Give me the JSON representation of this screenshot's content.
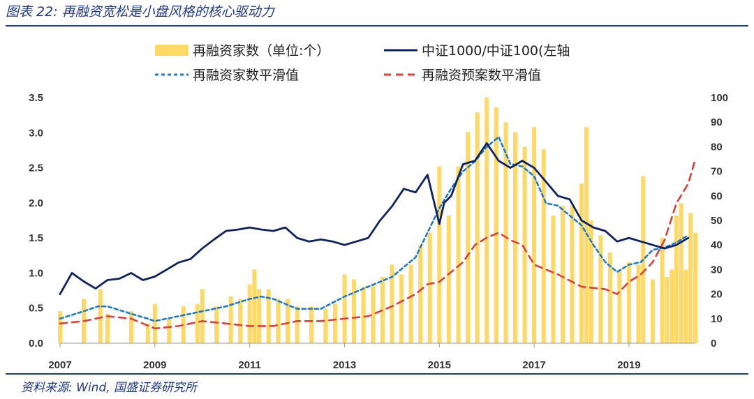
{
  "header": {
    "title": "图表 22:  再融资宽松是小盘风格的核心驱动力"
  },
  "footer": {
    "source": "资料来源:  Wind, 国盛证券研究所"
  },
  "colors": {
    "bars": "#FFD966",
    "index_line": "#0E2260",
    "smooth_line": "#1E7BC4",
    "proposal_line": "#D9413A",
    "frame": "#1F3B84"
  },
  "chart_data": {
    "type": "bar+line",
    "x_axis": {
      "labels": [
        "2007",
        "2009",
        "2011",
        "2013",
        "2015",
        "2017",
        "2019"
      ],
      "range": [
        "2007-01",
        "2020-04"
      ]
    },
    "y_left": {
      "ticks": [
        "0.0",
        "0.5",
        "1.0",
        "1.5",
        "2.0",
        "2.5",
        "3.0",
        "3.5"
      ],
      "range": [
        0,
        3.5
      ]
    },
    "y_right": {
      "ticks": [
        "0",
        "10",
        "20",
        "30",
        "40",
        "50",
        "60",
        "70",
        "80",
        "90",
        "100"
      ],
      "range": [
        0,
        100
      ]
    },
    "legend": [
      {
        "key": "bars",
        "label": "再融资家数（单位:个）",
        "style": "bar"
      },
      {
        "key": "index",
        "label": "中证1000/中证100(左轴",
        "style": "solid"
      },
      {
        "key": "smooth",
        "label": "再融资家数平滑值",
        "style": "dotted"
      },
      {
        "key": "proposal",
        "label": "再融资预案数平滑值",
        "style": "dashed"
      }
    ],
    "series": {
      "bars": {
        "axis": "right",
        "points": [
          [
            "2007.0",
            13
          ],
          [
            "2007.5",
            18
          ],
          [
            "2007.85",
            22
          ],
          [
            "2008.0",
            12
          ],
          [
            "2008.5",
            13
          ],
          [
            "2008.85",
            8
          ],
          [
            "2009.0",
            16
          ],
          [
            "2009.3",
            10
          ],
          [
            "2009.6",
            15
          ],
          [
            "2009.9",
            16
          ],
          [
            "2010.0",
            22
          ],
          [
            "2010.3",
            15
          ],
          [
            "2010.6",
            19
          ],
          [
            "2010.8",
            18
          ],
          [
            "2011.0",
            24
          ],
          [
            "2011.1",
            30
          ],
          [
            "2011.2",
            22
          ],
          [
            "2011.4",
            22
          ],
          [
            "2011.6",
            18
          ],
          [
            "2011.8",
            18
          ],
          [
            "2012.0",
            15
          ],
          [
            "2012.3",
            15
          ],
          [
            "2012.6",
            14
          ],
          [
            "2012.8",
            16
          ],
          [
            "2013.0",
            28
          ],
          [
            "2013.2",
            26
          ],
          [
            "2013.4",
            23
          ],
          [
            "2013.6",
            24
          ],
          [
            "2013.8",
            27
          ],
          [
            "2014.0",
            32
          ],
          [
            "2014.2",
            28
          ],
          [
            "2014.4",
            32
          ],
          [
            "2014.6",
            40
          ],
          [
            "2014.8",
            45
          ],
          [
            "2015.0",
            72
          ],
          [
            "2015.2",
            52
          ],
          [
            "2015.4",
            72
          ],
          [
            "2015.6",
            86
          ],
          [
            "2015.8",
            94
          ],
          [
            "2016.0",
            100
          ],
          [
            "2016.2",
            96
          ],
          [
            "2016.4",
            90
          ],
          [
            "2016.6",
            86
          ],
          [
            "2016.8",
            80
          ],
          [
            "2017.0",
            88
          ],
          [
            "2017.2",
            79
          ],
          [
            "2017.4",
            52
          ],
          [
            "2017.6",
            56
          ],
          [
            "2017.8",
            56
          ],
          [
            "2018.0",
            65
          ],
          [
            "2018.1",
            88
          ],
          [
            "2018.2",
            50
          ],
          [
            "2018.4",
            44
          ],
          [
            "2018.6",
            37
          ],
          [
            "2018.8",
            30
          ],
          [
            "2019.0",
            33
          ],
          [
            "2019.2",
            32
          ],
          [
            "2019.3",
            68
          ],
          [
            "2019.5",
            26
          ],
          [
            "2019.7",
            43
          ],
          [
            "2019.8",
            27
          ],
          [
            "2019.9",
            30
          ],
          [
            "2020.0",
            52
          ],
          [
            "2020.1",
            57
          ],
          [
            "2020.2",
            30
          ],
          [
            "2020.3",
            53
          ],
          [
            "2020.4",
            45
          ]
        ]
      },
      "index": {
        "axis": "left",
        "points": [
          [
            "2007.0",
            0.7
          ],
          [
            "2007.25",
            1.0
          ],
          [
            "2007.5",
            0.88
          ],
          [
            "2007.75",
            0.78
          ],
          [
            "2008.0",
            0.9
          ],
          [
            "2008.25",
            0.92
          ],
          [
            "2008.5",
            1.0
          ],
          [
            "2008.75",
            0.9
          ],
          [
            "2009.0",
            0.95
          ],
          [
            "2009.25",
            1.05
          ],
          [
            "2009.5",
            1.15
          ],
          [
            "2009.75",
            1.2
          ],
          [
            "2010.0",
            1.35
          ],
          [
            "2010.25",
            1.48
          ],
          [
            "2010.5",
            1.6
          ],
          [
            "2010.75",
            1.62
          ],
          [
            "2011.0",
            1.65
          ],
          [
            "2011.25",
            1.62
          ],
          [
            "2011.5",
            1.6
          ],
          [
            "2011.75",
            1.65
          ],
          [
            "2012.0",
            1.5
          ],
          [
            "2012.25",
            1.45
          ],
          [
            "2012.5",
            1.48
          ],
          [
            "2012.75",
            1.45
          ],
          [
            "2013.0",
            1.4
          ],
          [
            "2013.25",
            1.45
          ],
          [
            "2013.5",
            1.5
          ],
          [
            "2013.75",
            1.75
          ],
          [
            "2014.0",
            1.95
          ],
          [
            "2014.25",
            2.2
          ],
          [
            "2014.5",
            2.15
          ],
          [
            "2014.75",
            2.4
          ],
          [
            "2015.0",
            1.7
          ],
          [
            "2015.1",
            2.0
          ],
          [
            "2015.25",
            2.1
          ],
          [
            "2015.5",
            2.55
          ],
          [
            "2015.75",
            2.6
          ],
          [
            "2016.0",
            2.85
          ],
          [
            "2016.25",
            2.6
          ],
          [
            "2016.5",
            2.5
          ],
          [
            "2016.75",
            2.6
          ],
          [
            "2017.0",
            2.5
          ],
          [
            "2017.25",
            2.3
          ],
          [
            "2017.5",
            2.1
          ],
          [
            "2017.75",
            2.05
          ],
          [
            "2018.0",
            1.75
          ],
          [
            "2018.25",
            1.65
          ],
          [
            "2018.5",
            1.6
          ],
          [
            "2018.75",
            1.45
          ],
          [
            "2019.0",
            1.5
          ],
          [
            "2019.25",
            1.45
          ],
          [
            "2019.5",
            1.4
          ],
          [
            "2019.75",
            1.35
          ],
          [
            "2020.0",
            1.4
          ],
          [
            "2020.25",
            1.5
          ]
        ]
      },
      "smooth": {
        "axis": "right",
        "points": [
          [
            "2007.0",
            10
          ],
          [
            "2007.5",
            13
          ],
          [
            "2007.8",
            15
          ],
          [
            "2008.0",
            15
          ],
          [
            "2008.5",
            12
          ],
          [
            "2008.85",
            10
          ],
          [
            "2009.0",
            9
          ],
          [
            "2009.5",
            11
          ],
          [
            "2010.0",
            13
          ],
          [
            "2010.5",
            15
          ],
          [
            "2011.0",
            18
          ],
          [
            "2011.25",
            19
          ],
          [
            "2011.5",
            18
          ],
          [
            "2012.0",
            14
          ],
          [
            "2012.5",
            14
          ],
          [
            "2013.0",
            19
          ],
          [
            "2013.5",
            23
          ],
          [
            "2014.0",
            27
          ],
          [
            "2014.5",
            35
          ],
          [
            "2014.75",
            45
          ],
          [
            "2015.0",
            55
          ],
          [
            "2015.25",
            63
          ],
          [
            "2015.5",
            70
          ],
          [
            "2015.75",
            74
          ],
          [
            "2016.0",
            80
          ],
          [
            "2016.25",
            84
          ],
          [
            "2016.5",
            73
          ],
          [
            "2016.75",
            72
          ],
          [
            "2017.0",
            68
          ],
          [
            "2017.25",
            57
          ],
          [
            "2017.5",
            56
          ],
          [
            "2017.75",
            52
          ],
          [
            "2018.0",
            48
          ],
          [
            "2018.25",
            40
          ],
          [
            "2018.5",
            33
          ],
          [
            "2018.75",
            29
          ],
          [
            "2019.0",
            32
          ],
          [
            "2019.25",
            33
          ],
          [
            "2019.5",
            38
          ],
          [
            "2019.75",
            39
          ],
          [
            "2020.0",
            41
          ],
          [
            "2020.25",
            44
          ]
        ]
      },
      "proposal": {
        "axis": "right",
        "points": [
          [
            "2007.0",
            8
          ],
          [
            "2007.5",
            9
          ],
          [
            "2008.0",
            11
          ],
          [
            "2008.5",
            10
          ],
          [
            "2009.0",
            6
          ],
          [
            "2009.5",
            7
          ],
          [
            "2010.0",
            9
          ],
          [
            "2010.5",
            8
          ],
          [
            "2011.0",
            7
          ],
          [
            "2011.5",
            7
          ],
          [
            "2012.0",
            9
          ],
          [
            "2012.5",
            9
          ],
          [
            "2013.0",
            10
          ],
          [
            "2013.5",
            11
          ],
          [
            "2014.0",
            15
          ],
          [
            "2014.5",
            20
          ],
          [
            "2014.75",
            24
          ],
          [
            "2015.0",
            25
          ],
          [
            "2015.5",
            33
          ],
          [
            "2015.75",
            40
          ],
          [
            "2016.0",
            43
          ],
          [
            "2016.25",
            45
          ],
          [
            "2016.5",
            42
          ],
          [
            "2016.75",
            40
          ],
          [
            "2017.0",
            32
          ],
          [
            "2017.5",
            28
          ],
          [
            "2018.0",
            23
          ],
          [
            "2018.5",
            22
          ],
          [
            "2018.75",
            20
          ],
          [
            "2019.0",
            25
          ],
          [
            "2019.25",
            28
          ],
          [
            "2019.5",
            33
          ],
          [
            "2019.75",
            42
          ],
          [
            "2020.0",
            57
          ],
          [
            "2020.25",
            65
          ],
          [
            "2020.4",
            75
          ]
        ]
      }
    }
  }
}
